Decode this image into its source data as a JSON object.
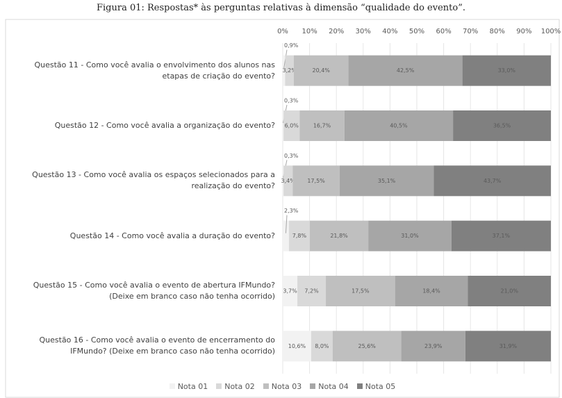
{
  "chart_data": {
    "type": "bar",
    "orientation": "horizontal",
    "stacking": "percent",
    "title": "Figura 01: Respostas* às perguntas relativas à dimensão “qualidade do evento”.",
    "categories": [
      "Questão 11 - Como você avalia o envolvimento dos alunos nas etapas de criação do evento?",
      "Questão 12 - Como você avalia a organização do evento?",
      "Questão 13 - Como você avalia os espaços selecionados para a realização do evento?",
      "Questão 14 - Como você avalia a duração do evento?",
      "Questão 15 - Como você avalia o evento de abertura IFMundo? (Deixe em branco caso não tenha ocorrido)",
      "Questão 16 - Como você avalia o evento de encerramento do IFMundo? (Deixe em branco caso não tenha ocorrido)"
    ],
    "series": [
      {
        "name": "Nota 01",
        "color": "#f2f2f2",
        "values": [
          0.9,
          0.3,
          0.3,
          2.3,
          3.7,
          10.6
        ],
        "value_labels": [
          "0,9%",
          "0,3%",
          "0,3%",
          "2,3%",
          "3,7%",
          "10,6%"
        ]
      },
      {
        "name": "Nota 02",
        "color": "#d9d9d9",
        "values": [
          3.2,
          6.0,
          3.4,
          7.8,
          7.2,
          8.0
        ],
        "value_labels": [
          "3,2%",
          "6,0%",
          "3,4%",
          "7,8%",
          "7,2%",
          "8,0%"
        ]
      },
      {
        "name": "Nota 03",
        "color": "#bfbfbf",
        "values": [
          20.4,
          16.7,
          17.5,
          21.8,
          17.5,
          25.6
        ],
        "value_labels": [
          "20,4%",
          "16,7%",
          "17,5%",
          "21,8%",
          "17,5%",
          "25,6%"
        ]
      },
      {
        "name": "Nota 04",
        "color": "#a6a6a6",
        "values": [
          42.5,
          40.5,
          35.1,
          31.0,
          18.4,
          23.9
        ],
        "value_labels": [
          "42,5%",
          "40,5%",
          "35,1%",
          "31,0%",
          "18,4%",
          "23,9%"
        ]
      },
      {
        "name": "Nota 05",
        "color": "#808080",
        "values": [
          33.0,
          36.5,
          43.7,
          37.1,
          21.0,
          31.9
        ],
        "value_labels": [
          "33,0%",
          "36,5%",
          "43,7%",
          "37,1%",
          "21,0%",
          "31,9%"
        ]
      }
    ],
    "xlim": [
      0,
      100
    ],
    "xticks": [
      {
        "value": 0,
        "label": "0%"
      },
      {
        "value": 10,
        "label": "10%"
      },
      {
        "value": 20,
        "label": "20%"
      },
      {
        "value": 30,
        "label": "30%"
      },
      {
        "value": 40,
        "label": "40%"
      },
      {
        "value": 50,
        "label": "50%"
      },
      {
        "value": 60,
        "label": "60%"
      },
      {
        "value": 70,
        "label": "70%"
      },
      {
        "value": 80,
        "label": "80%"
      },
      {
        "value": 90,
        "label": "90%"
      },
      {
        "value": 100,
        "label": "100%"
      }
    ],
    "grid": true,
    "legend": "bottom"
  }
}
